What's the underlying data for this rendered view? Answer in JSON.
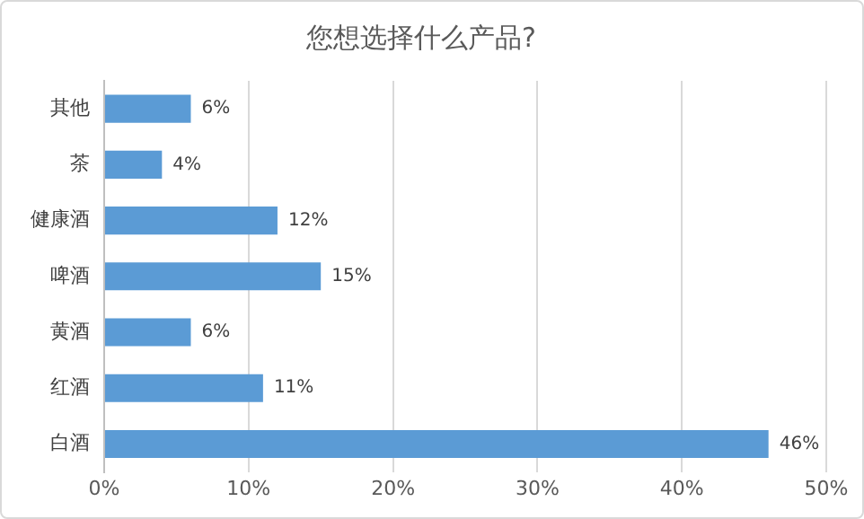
{
  "chart_data": {
    "type": "bar",
    "orientation": "horizontal",
    "title": "您想选择什么产品?",
    "categories": [
      "其他",
      "茶",
      "健康酒",
      "啤酒",
      "黄酒",
      "红酒",
      "白酒"
    ],
    "values": [
      6,
      4,
      12,
      15,
      6,
      11,
      46
    ],
    "value_labels": [
      "6%",
      "4%",
      "12%",
      "15%",
      "6%",
      "11%",
      "46%"
    ],
    "color": "#5b9bd5",
    "xlim": [
      0,
      50
    ],
    "xticks": [
      {
        "value": 0,
        "label": "0%"
      },
      {
        "value": 10,
        "label": "10%"
      },
      {
        "value": 20,
        "label": "20%"
      },
      {
        "value": 30,
        "label": "30%"
      },
      {
        "value": 40,
        "label": "40%"
      },
      {
        "value": 50,
        "label": "50%"
      }
    ],
    "grid": "x",
    "legend": false
  }
}
